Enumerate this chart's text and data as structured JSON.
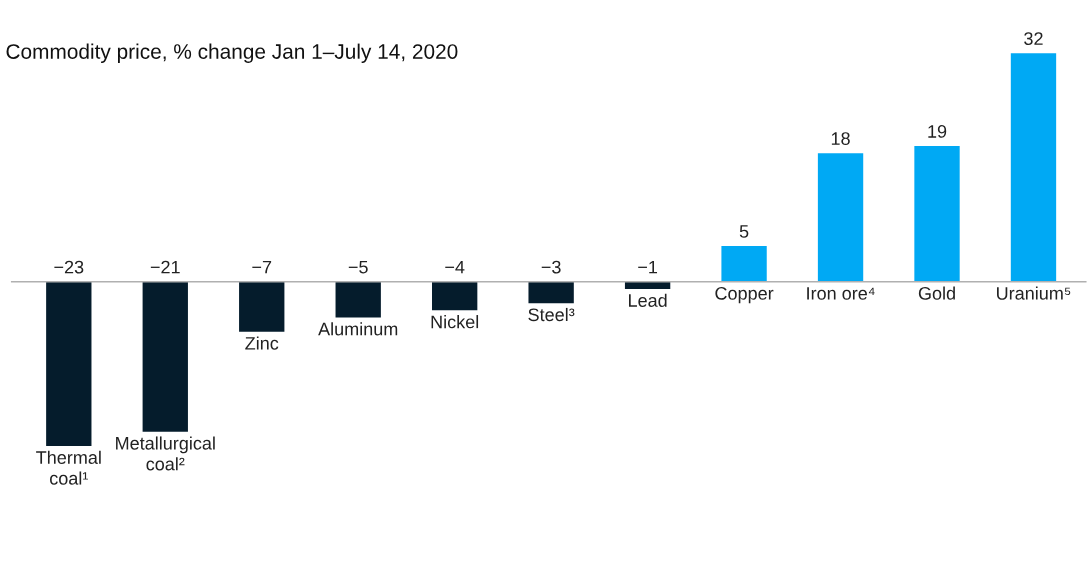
{
  "chart_data": {
    "type": "bar",
    "title": "Commodity price, % change Jan 1–July 14, 2020",
    "categories": [
      "Thermal\ncoal¹",
      "Metallurgical\ncoal²",
      "Zinc",
      "Aluminum",
      "Nickel",
      "Steel³",
      "Lead",
      "Copper",
      "Iron ore⁴",
      "Gold",
      "Uranium⁵"
    ],
    "values": [
      -23,
      -21,
      -7,
      -5,
      -4,
      -3,
      -1,
      5,
      18,
      19,
      32
    ],
    "colors": [
      "#051c2c",
      "#051c2c",
      "#051c2c",
      "#051c2c",
      "#051c2c",
      "#051c2c",
      "#051c2c",
      "#00a9f4",
      "#00a9f4",
      "#00a9f4",
      "#00a9f4"
    ],
    "data_labels": true
  }
}
